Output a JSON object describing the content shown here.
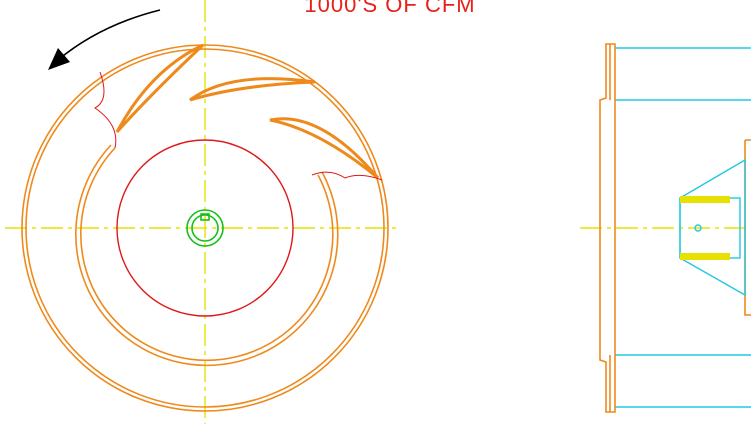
{
  "title": "1000'S OF CFM"
}
